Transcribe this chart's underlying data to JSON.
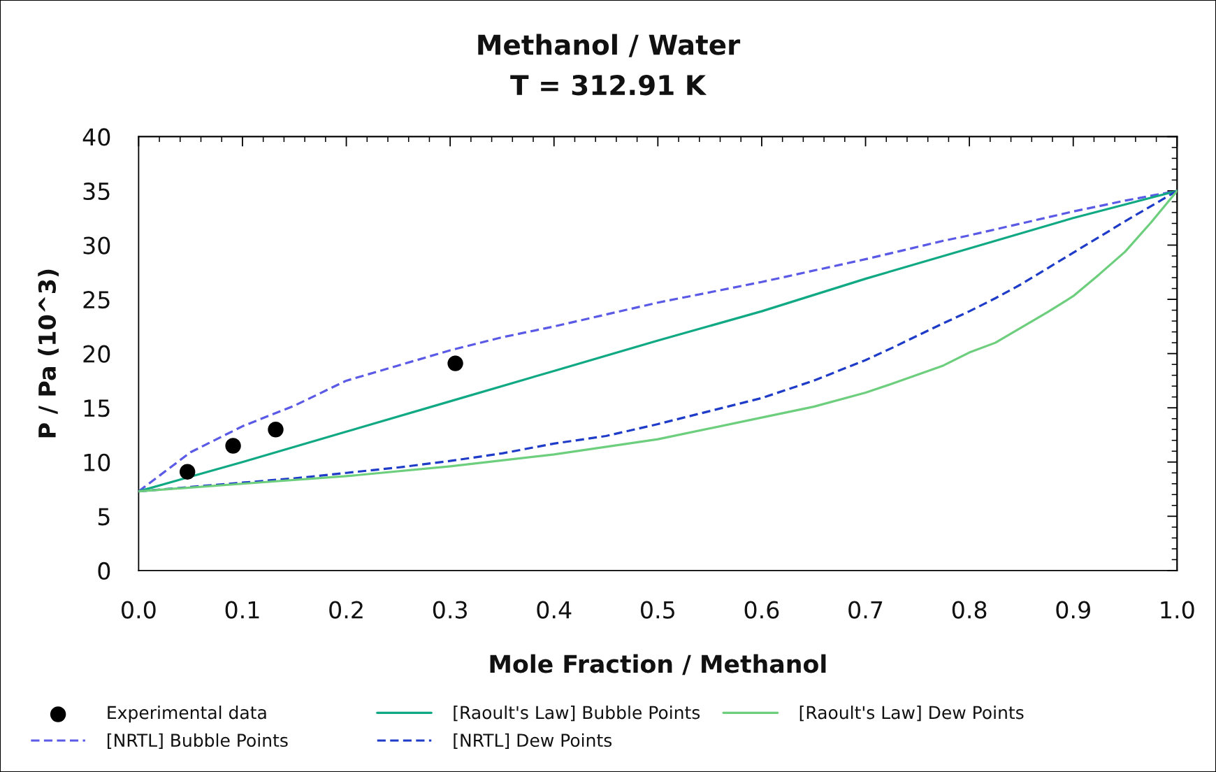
{
  "chart_data": {
    "type": "line",
    "title": "Methanol / Water\nT = 312.91 K",
    "xlabel": "Mole Fraction / Methanol",
    "ylabel": "P / Pa (10^3)",
    "xlim": [
      0,
      1
    ],
    "ylim": [
      0,
      40
    ],
    "xticks": [
      {
        "value": 0,
        "label": "0.0"
      },
      {
        "value": 0.1,
        "label": "0.1"
      },
      {
        "value": 0.2,
        "label": "0.2"
      },
      {
        "value": 0.3,
        "label": "0.3"
      },
      {
        "value": 0.4,
        "label": "0.4"
      },
      {
        "value": 0.5,
        "label": "0.5"
      },
      {
        "value": 0.6,
        "label": "0.6"
      },
      {
        "value": 0.7,
        "label": "0.7"
      },
      {
        "value": 0.8,
        "label": "0.8"
      },
      {
        "value": 0.9,
        "label": "0.9"
      },
      {
        "value": 1,
        "label": "1.0"
      }
    ],
    "yticks": [
      0,
      5,
      10,
      15,
      20,
      25,
      30,
      35,
      40
    ],
    "legend": "bottom",
    "series": [
      {
        "name": "Experimental data",
        "type": "scatter",
        "marker": "circle",
        "color": "#000000",
        "x": [
          0.047,
          0.091,
          0.132,
          0.305
        ],
        "values": [
          9.1,
          11.5,
          13.0,
          19.1
        ]
      },
      {
        "name": "[NRTL] Bubble Points",
        "marker": "none",
        "line_style": "dashed",
        "color": "#5a5ae6",
        "x": [
          0,
          0.05,
          0.1,
          0.15,
          0.2,
          0.25,
          0.3,
          0.35,
          0.4,
          0.5,
          0.6,
          0.7,
          0.775,
          0.8,
          0.85,
          0.9,
          0.95,
          1.0
        ],
        "values": [
          7.3,
          10.9,
          13.3,
          15.2,
          17.5,
          18.9,
          20.3,
          21.5,
          22.5,
          24.7,
          26.6,
          28.7,
          30.4,
          30.9,
          32.0,
          33.1,
          34.1,
          35.0
        ]
      },
      {
        "name": "[Raoult's Law] Bubble Points",
        "marker": "none",
        "line_style": "solid",
        "color": "#10a983",
        "x": [
          0,
          0.1,
          0.2,
          0.3,
          0.4,
          0.5,
          0.6,
          0.7,
          0.8,
          0.9,
          1.0
        ],
        "values": [
          7.3,
          10.0,
          12.8,
          15.6,
          18.4,
          21.2,
          23.9,
          26.9,
          29.7,
          32.5,
          35.0
        ]
      },
      {
        "name": "[NRTL] Dew Points",
        "marker": "none",
        "line_style": "dashed",
        "color": "#1f3cc8",
        "x": [
          0,
          0.05,
          0.1,
          0.15,
          0.2,
          0.25,
          0.3,
          0.35,
          0.4,
          0.45,
          0.5,
          0.55,
          0.6,
          0.65,
          0.7,
          0.725,
          0.775,
          0.8,
          0.825,
          0.85,
          0.9,
          0.95,
          1.0
        ],
        "values": [
          7.3,
          7.7,
          8.1,
          8.5,
          9.0,
          9.5,
          10.1,
          10.8,
          11.7,
          12.4,
          13.5,
          14.7,
          15.9,
          17.5,
          19.4,
          20.5,
          22.8,
          23.9,
          25.1,
          26.4,
          29.3,
          32.2,
          35.0
        ]
      },
      {
        "name": "[Raoult's Law] Dew Points",
        "marker": "none",
        "line_style": "solid",
        "color": "#6dcf7d",
        "x": [
          0,
          0.1,
          0.2,
          0.3,
          0.4,
          0.5,
          0.6,
          0.65,
          0.7,
          0.725,
          0.775,
          0.8,
          0.825,
          0.85,
          0.875,
          0.9,
          0.925,
          0.95,
          0.975,
          1.0
        ],
        "values": [
          7.3,
          8.0,
          8.7,
          9.6,
          10.7,
          12.1,
          14.1,
          15.1,
          16.4,
          17.2,
          18.9,
          20.1,
          21.0,
          22.4,
          23.8,
          25.3,
          27.3,
          29.4,
          32.1,
          35.0
        ]
      }
    ]
  }
}
